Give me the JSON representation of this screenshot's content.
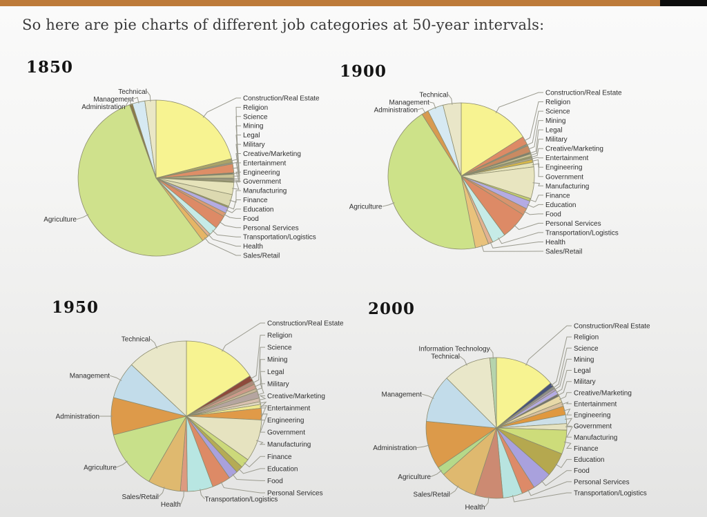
{
  "page": {
    "title": "So here are pie charts of different job categories at 50-year intervals:",
    "accent_bar": {
      "orange": "#bd7b3a",
      "black": "#0d0d0d"
    }
  },
  "chart_data": [
    {
      "type": "pie",
      "title": "1850",
      "legend_position": "outside-leader-labels",
      "categories": [
        "Construction/Real Estate",
        "Religion",
        "Science",
        "Mining",
        "Legal",
        "Military",
        "Creative/Marketing",
        "Entertainment",
        "Engineering",
        "Government",
        "Manufacturing",
        "Finance",
        "Education",
        "Food",
        "Personal Services",
        "Transportation/Logistics",
        "Health",
        "Sales/Retail",
        "Agriculture",
        "Administration",
        "Management",
        "Technical"
      ],
      "values": [
        21,
        0.8,
        0.3,
        1.8,
        0.3,
        0.8,
        0.3,
        0.3,
        0.3,
        2.5,
        2.5,
        0.3,
        1.2,
        0.8,
        2.8,
        1.8,
        0.6,
        1.4,
        54.7,
        0.6,
        2.6,
        2.3
      ],
      "colors": [
        "#f7f391",
        "#aaa369",
        "#9a9a8a",
        "#de8e67",
        "#7d7d6d",
        "#c9c294",
        "#8f8f7f",
        "#b3ab91",
        "#94946a",
        "#e6e3ba",
        "#dcd9b0",
        "#9c9c64",
        "#b4abe3",
        "#db9a72",
        "#dd8a66",
        "#c6ebe7",
        "#e2b292",
        "#e6b566",
        "#cfe18c",
        "#8a7a4a",
        "#d6e9f2",
        "#eae7c6"
      ]
    },
    {
      "type": "pie",
      "title": "1900",
      "legend_position": "outside-leader-labels",
      "categories": [
        "Construction/Real Estate",
        "Religion",
        "Science",
        "Mining",
        "Legal",
        "Military",
        "Creative/Marketing",
        "Entertainment",
        "Engineering",
        "Government",
        "Manufacturing",
        "Finance",
        "Education",
        "Food",
        "Personal Services",
        "Transportation/Logistics",
        "Health",
        "Sales/Retail",
        "Agriculture",
        "Administration",
        "Management",
        "Technical"
      ],
      "values": [
        16,
        1.8,
        0.4,
        1.5,
        0.4,
        0.5,
        0.4,
        0.4,
        0.6,
        1.0,
        7.0,
        0.6,
        1.8,
        1.5,
        6.0,
        3.0,
        1.0,
        3.0,
        44.1,
        1.5,
        3.5,
        4.0
      ],
      "colors": [
        "#f7f391",
        "#dd8a66",
        "#8f8f7f",
        "#c98a62",
        "#7d7d6d",
        "#c9c294",
        "#9a9a6a",
        "#b3ab91",
        "#d9b84a",
        "#e6e3ba",
        "#e8e5c0",
        "#c2cc72",
        "#b4abe3",
        "#d8946e",
        "#dd8a66",
        "#c6ebe7",
        "#e2b292",
        "#e9c27c",
        "#cde289",
        "#d89a50",
        "#d6e9f2",
        "#e9e6c8"
      ]
    },
    {
      "type": "pie",
      "title": "1950",
      "legend_position": "outside-leader-labels",
      "categories": [
        "Construction/Real Estate",
        "Religion",
        "Science",
        "Mining",
        "Legal",
        "Military",
        "Creative/Marketing",
        "Entertainment",
        "Engineering",
        "Government",
        "Manufacturing",
        "Finance",
        "Education",
        "Food",
        "Personal Services",
        "Transportation/Logistics",
        "Health",
        "Sales/Retail",
        "Agriculture",
        "Administration",
        "Management",
        "Technical"
      ],
      "values": [
        16,
        1.2,
        0.8,
        1.0,
        0.6,
        1.5,
        0.8,
        0.6,
        0.8,
        2.5,
        9.0,
        2.0,
        1.5,
        2.0,
        4.0,
        5.5,
        1.5,
        7.0,
        12.7,
        8.0,
        8.0,
        13.0
      ],
      "colors": [
        "#f7f391",
        "#8e4a3c",
        "#b08a7a",
        "#cc9a8a",
        "#c8b89a",
        "#b5a5a0",
        "#d8c0b0",
        "#e0d8c0",
        "#efe98f",
        "#e09a48",
        "#e6e3c0",
        "#ccd97a",
        "#b5ab55",
        "#a9a1dd",
        "#dd8a66",
        "#b8e6e2",
        "#dd9a80",
        "#dfb96f",
        "#c8e08a",
        "#dd9a4a",
        "#c2dcea",
        "#e9e7c9"
      ]
    },
    {
      "type": "pie",
      "title": "2000",
      "legend_position": "outside-leader-labels",
      "categories": [
        "Construction/Real Estate",
        "Religion",
        "Science",
        "Mining",
        "Legal",
        "Military",
        "Creative/Marketing",
        "Entertainment",
        "Engineering",
        "Government",
        "Manufacturing",
        "Finance",
        "Education",
        "Food",
        "Personal Services",
        "Transportation/Logistics",
        "Health",
        "Sales/Retail",
        "Agriculture",
        "Administration",
        "Management",
        "Technical",
        "Information Technology"
      ],
      "values": [
        14,
        1.0,
        0.5,
        0.5,
        1.0,
        0.5,
        1.5,
        1.0,
        2.0,
        2.0,
        1.5,
        5.5,
        5.5,
        4.5,
        3.0,
        4.5,
        6.5,
        8.5,
        2.0,
        11.0,
        11.0,
        11.0,
        1.5
      ],
      "colors": [
        "#f7f391",
        "#48537a",
        "#8f8f8f",
        "#b0a0c0",
        "#b4abe3",
        "#6f6f6f",
        "#e8d9a8",
        "#d8c0a0",
        "#e0983f",
        "#ccdfe8",
        "#e5e2c0",
        "#cddc7a",
        "#b5a84f",
        "#a9a1dd",
        "#dd8a68",
        "#b8e4e0",
        "#cc8a72",
        "#dfb96f",
        "#b5d98a",
        "#dc9a4a",
        "#c2dcea",
        "#e9e7c9",
        "#b5d4ad"
      ]
    }
  ]
}
